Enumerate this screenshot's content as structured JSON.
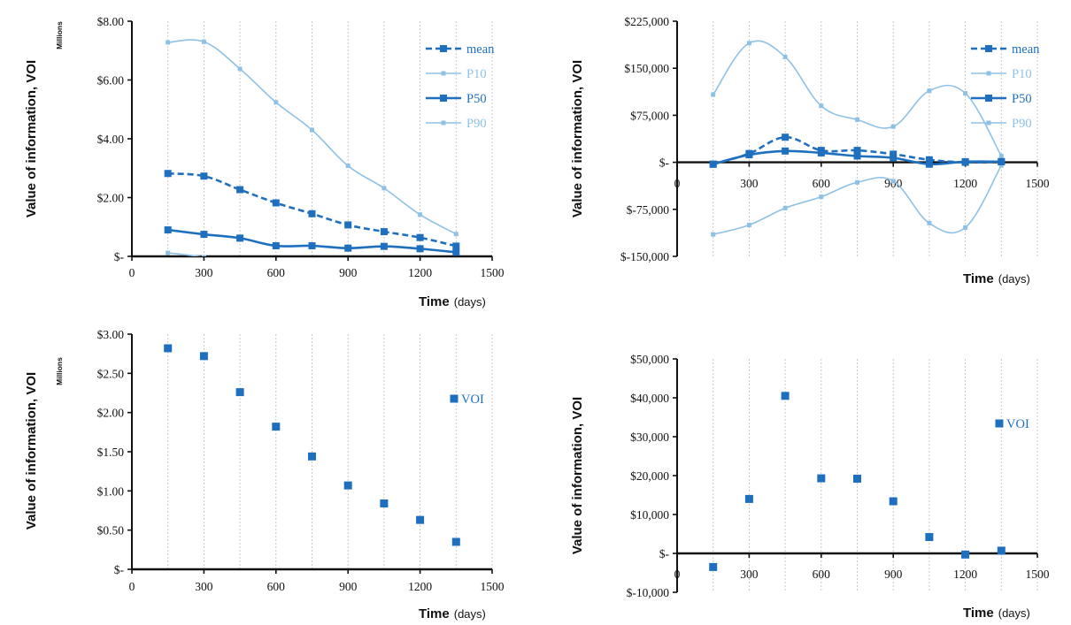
{
  "colors": {
    "dark": "#1f6fbf",
    "light": "#8ec1e6",
    "grid": "#c4c4c4",
    "axis": "#111111"
  },
  "chart_data": [
    {
      "type": "line",
      "ylabel": "Value of information, VOI",
      "xlabel": "Time",
      "xunit": "(days)",
      "units_note": "Millions",
      "xlim": [
        0,
        1500
      ],
      "ylim": [
        0,
        8
      ],
      "xticks": [
        0,
        300,
        600,
        900,
        1200,
        1500
      ],
      "xtick_labels": [
        "0",
        "300",
        "600",
        "900",
        "1200",
        "1500"
      ],
      "yticks": [
        0,
        2,
        4,
        6,
        8
      ],
      "ytick_labels": [
        "$-",
        "$2.00",
        "$4.00",
        "$6.00",
        "$8.00"
      ],
      "x": [
        150,
        300,
        450,
        600,
        750,
        900,
        1050,
        1200,
        1350
      ],
      "series": [
        {
          "name": "mean",
          "values": [
            2.82,
            2.73,
            2.27,
            1.82,
            1.45,
            1.07,
            0.84,
            0.64,
            0.35
          ]
        },
        {
          "name": "P10",
          "values": [
            0.12,
            -0.03,
            -0.3,
            -0.3,
            -0.3,
            -0.3,
            -0.3,
            -0.3,
            -0.3
          ]
        },
        {
          "name": "P50",
          "values": [
            0.9,
            0.75,
            0.62,
            0.36,
            0.36,
            0.28,
            0.34,
            0.26,
            0.14
          ]
        },
        {
          "name": "P90",
          "values": [
            7.28,
            7.3,
            6.38,
            5.24,
            4.3,
            3.08,
            2.32,
            1.42,
            0.76
          ]
        }
      ],
      "legend_position": "top-right"
    },
    {
      "type": "line",
      "ylabel": "Value of information, VOI",
      "xlabel": "Time",
      "xunit": "(days)",
      "xlim": [
        0,
        1500
      ],
      "ylim": [
        -150000,
        225000
      ],
      "xticks": [
        0,
        300,
        600,
        900,
        1200,
        1500
      ],
      "xtick_labels": [
        "0",
        "300",
        "600",
        "900",
        "1200",
        "1500"
      ],
      "yticks": [
        -150000,
        -75000,
        0,
        75000,
        150000,
        225000
      ],
      "ytick_labels": [
        "$-150,000",
        "$-75,000",
        "$-",
        "$75,000",
        "$150,000",
        "$225,000"
      ],
      "x": [
        150,
        300,
        450,
        600,
        750,
        900,
        1050,
        1200,
        1350
      ],
      "series": [
        {
          "name": "mean",
          "values": [
            -3000,
            14000,
            40000,
            19000,
            19000,
            13000,
            4000,
            0,
            1000
          ]
        },
        {
          "name": "P10",
          "values": [
            108000,
            190000,
            168000,
            90000,
            68000,
            57000,
            114000,
            110000,
            10000
          ]
        },
        {
          "name": "P50",
          "values": [
            -3000,
            12000,
            18000,
            15000,
            10000,
            7000,
            -3000,
            1000,
            1000
          ]
        },
        {
          "name": "P90",
          "values": [
            -115000,
            -100000,
            -73000,
            -55000,
            -32000,
            -30000,
            -97000,
            -104000,
            -5000
          ]
        }
      ],
      "legend_position": "top-right"
    },
    {
      "type": "scatter",
      "ylabel": "Value of information, VOI",
      "xlabel": "Time",
      "xunit": "(days)",
      "units_note": "Millions",
      "xlim": [
        0,
        1500
      ],
      "ylim": [
        0,
        3
      ],
      "xticks": [
        0,
        300,
        600,
        900,
        1200,
        1500
      ],
      "xtick_labels": [
        "0",
        "300",
        "600",
        "900",
        "1200",
        "1500"
      ],
      "yticks": [
        0,
        0.5,
        1,
        1.5,
        2,
        2.5,
        3
      ],
      "ytick_labels": [
        "$-",
        "$0.50",
        "$1.00",
        "$1.50",
        "$2.00",
        "$2.50",
        "$3.00"
      ],
      "x": [
        150,
        300,
        450,
        600,
        750,
        900,
        1050,
        1200,
        1350
      ],
      "series": [
        {
          "name": "VOI",
          "values": [
            2.82,
            2.72,
            2.26,
            1.82,
            1.44,
            1.07,
            0.84,
            0.63,
            0.35
          ]
        }
      ],
      "legend_position": "right"
    },
    {
      "type": "scatter",
      "ylabel": "Value of information, VOI",
      "xlabel": "Time",
      "xunit": "(days)",
      "xlim": [
        0,
        1500
      ],
      "ylim": [
        -10000,
        50000
      ],
      "xticks": [
        0,
        300,
        600,
        900,
        1200,
        1500
      ],
      "xtick_labels": [
        "0",
        "300",
        "600",
        "900",
        "1200",
        "1500"
      ],
      "yticks": [
        -10000,
        0,
        10000,
        20000,
        30000,
        40000,
        50000
      ],
      "ytick_labels": [
        "$-10,000",
        "$-",
        "$10,000",
        "$20,000",
        "$30,000",
        "$40,000",
        "$50,000"
      ],
      "x": [
        150,
        300,
        450,
        600,
        750,
        900,
        1050,
        1200,
        1350
      ],
      "series": [
        {
          "name": "VOI",
          "values": [
            -3500,
            14000,
            40500,
            19300,
            19200,
            13400,
            4200,
            -300,
            700
          ]
        }
      ],
      "legend_position": "right"
    }
  ]
}
